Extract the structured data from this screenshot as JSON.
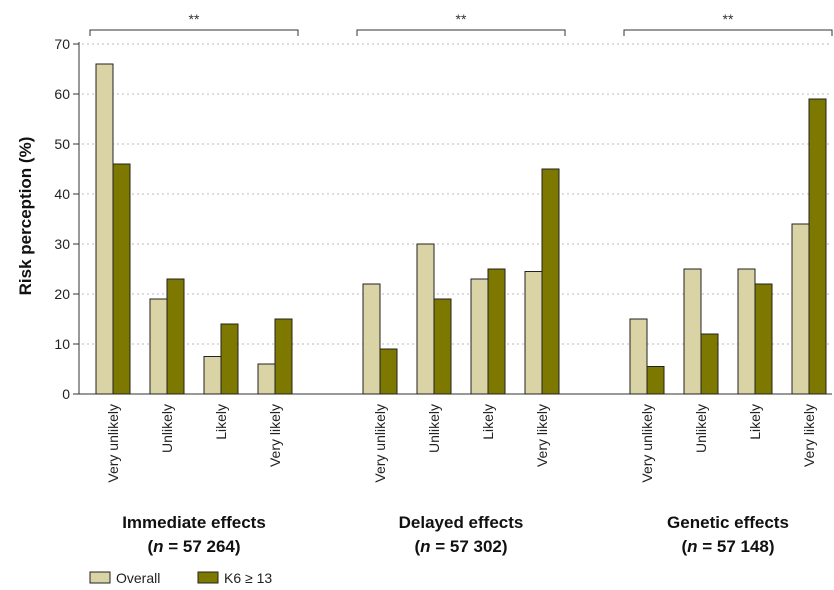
{
  "chart_data": {
    "type": "bar",
    "ylabel": "Risk perception (%)",
    "ylim": [
      0,
      70
    ],
    "yticks": [
      0,
      10,
      20,
      30,
      40,
      50,
      60,
      70
    ],
    "grid": "horizontal dotted",
    "legend_placement": "bottom-left",
    "categories": [
      "Very unlikely",
      "Unlikely",
      "Likely",
      "Very likely"
    ],
    "series": [
      {
        "name": "Overall",
        "color": "#d9d3a6"
      },
      {
        "name": "K6 ≥ 13",
        "color": "#7d7800"
      }
    ],
    "groups": [
      {
        "title": "Immediate effects",
        "n_prefix": "(",
        "n_var": "n",
        "n_rest": " = 57 264)",
        "significance": "**",
        "values": {
          "Overall": [
            66,
            19,
            7.5,
            6
          ],
          "K6 ≥ 13": [
            46,
            23,
            14,
            15
          ]
        }
      },
      {
        "title": "Delayed effects",
        "n_prefix": "(",
        "n_var": "n",
        "n_rest": " = 57 302)",
        "significance": "**",
        "values": {
          "Overall": [
            22,
            30,
            23,
            24.5
          ],
          "K6 ≥ 13": [
            9,
            19,
            25,
            45
          ]
        }
      },
      {
        "title": "Genetic effects",
        "n_prefix": "(",
        "n_var": "n",
        "n_rest": " = 57 148)",
        "significance": "**",
        "values": {
          "Overall": [
            15,
            25,
            25,
            34
          ],
          "K6 ≥ 13": [
            5.5,
            12,
            22,
            59
          ]
        }
      }
    ]
  }
}
